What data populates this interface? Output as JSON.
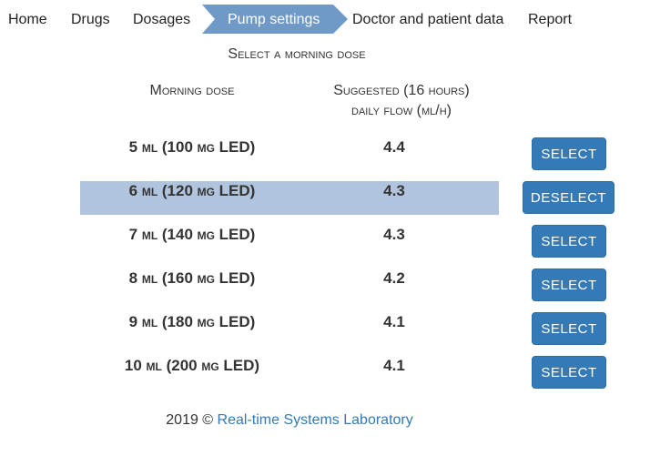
{
  "nav": {
    "items": [
      {
        "label": "Home"
      },
      {
        "label": "Drugs"
      },
      {
        "label": "Dosages"
      },
      {
        "label": "Pump settings",
        "active": true
      },
      {
        "label": "Doctor and patient data"
      },
      {
        "label": "Report"
      }
    ],
    "active_color": "#6f99c7"
  },
  "heading": "Select a morning dose",
  "columns": {
    "dose": "Morning dose",
    "flow_line1": "Suggested (16 hours)",
    "flow_line2": "daily flow (ml/h)"
  },
  "rows": [
    {
      "dose": "5 ml (100 mg LED)",
      "flow": "4.4",
      "action": "SELECT",
      "selected": false
    },
    {
      "dose": "6 ml (120 mg LED)",
      "flow": "4.3",
      "action": "DESELECT",
      "selected": true
    },
    {
      "dose": "7 ml (140 mg LED)",
      "flow": "4.3",
      "action": "SELECT",
      "selected": false
    },
    {
      "dose": "8 ml (160 mg LED)",
      "flow": "4.2",
      "action": "SELECT",
      "selected": false
    },
    {
      "dose": "9 ml (180 mg LED)",
      "flow": "4.1",
      "action": "SELECT",
      "selected": false
    },
    {
      "dose": "10 ml (200 mg LED)",
      "flow": "4.1",
      "action": "SELECT",
      "selected": false
    }
  ],
  "colors": {
    "button": "#337ab7",
    "selected_row": "#b0c4de",
    "link": "#337ab7"
  },
  "footer": {
    "prefix": "2019 ©",
    "link": "Real-time Systems Laboratory"
  }
}
